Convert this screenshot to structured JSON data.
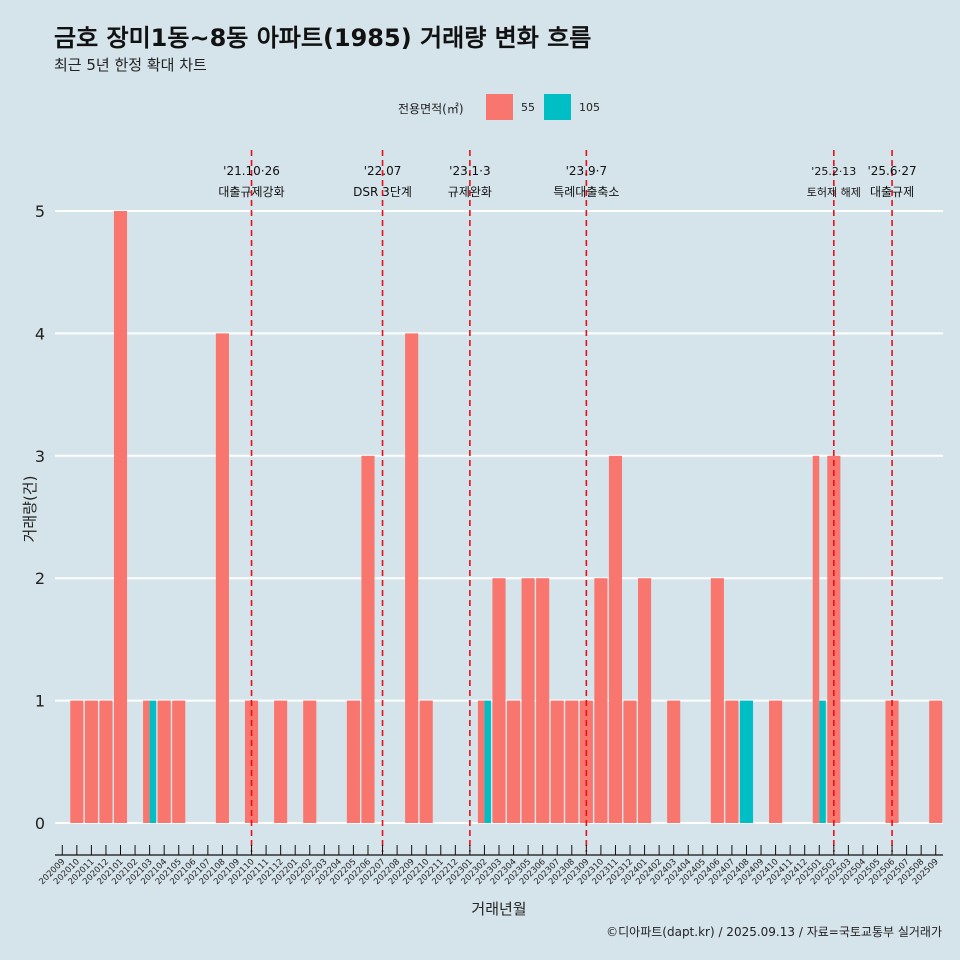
{
  "title": "금호 장미1동~8동 아파트(1985) 거래량 변화 흐름",
  "subtitle": "최근 5년 한정 확대 차트",
  "legend": {
    "title": "전용면적(㎡)",
    "items": [
      {
        "label": "55",
        "color": "#F8766D"
      },
      {
        "label": "105",
        "color": "#00BFC4"
      }
    ]
  },
  "caption": "©디아파트(dapt.kr) / 2025.09.13 / 자료=국토교통부 실거래가",
  "chart_data": {
    "type": "bar",
    "stacking": "dodge",
    "xlabel": "거래년월",
    "ylabel": "거래량(건)",
    "ylim": [
      0,
      5
    ],
    "yticks": [
      0,
      1,
      2,
      3,
      4,
      5
    ],
    "categories": [
      "202009",
      "202010",
      "202011",
      "202012",
      "202101",
      "202102",
      "202103",
      "202104",
      "202105",
      "202106",
      "202107",
      "202108",
      "202109",
      "202110",
      "202111",
      "202112",
      "202201",
      "202202",
      "202203",
      "202204",
      "202205",
      "202206",
      "202207",
      "202208",
      "202209",
      "202210",
      "202211",
      "202212",
      "202301",
      "202302",
      "202303",
      "202304",
      "202305",
      "202306",
      "202307",
      "202308",
      "202309",
      "202310",
      "202311",
      "202312",
      "202401",
      "202402",
      "202403",
      "202404",
      "202405",
      "202406",
      "202407",
      "202408",
      "202409",
      "202410",
      "202411",
      "202412",
      "202501",
      "202502",
      "202503",
      "202504",
      "202505",
      "202506",
      "202507",
      "202508",
      "202509"
    ],
    "series": [
      {
        "name": "55",
        "color": "#F8766D",
        "values": [
          0,
          1,
          1,
          1,
          5,
          0,
          1,
          1,
          1,
          0,
          0,
          4,
          0,
          1,
          0,
          1,
          0,
          1,
          0,
          0,
          1,
          3,
          0,
          0,
          4,
          1,
          0,
          0,
          0,
          1,
          2,
          1,
          2,
          2,
          1,
          1,
          1,
          2,
          3,
          1,
          2,
          0,
          1,
          0,
          0,
          2,
          1,
          0,
          0,
          1,
          0,
          0,
          3,
          3,
          0,
          0,
          0,
          1,
          0,
          0,
          1
        ]
      },
      {
        "name": "105",
        "color": "#00BFC4",
        "values": [
          0,
          0,
          0,
          0,
          0,
          0,
          1,
          0,
          0,
          0,
          0,
          0,
          0,
          0,
          0,
          0,
          0,
          0,
          0,
          0,
          0,
          0,
          0,
          0,
          0,
          0,
          0,
          0,
          0,
          1,
          0,
          0,
          0,
          0,
          0,
          0,
          0,
          0,
          0,
          0,
          0,
          0,
          0,
          0,
          0,
          0,
          0,
          1,
          0,
          0,
          0,
          0,
          1,
          0,
          0,
          0,
          0,
          0,
          0,
          0,
          0
        ]
      }
    ],
    "grid": true,
    "legend_position": "top",
    "annotations": [
      {
        "x": "202110",
        "date": "'21.10·26",
        "label": "대출규제강화"
      },
      {
        "x": "202207",
        "date": "'22.07",
        "label": "DSR 3단계"
      },
      {
        "x": "202301",
        "date": "'23.1·3",
        "label": "규제완화"
      },
      {
        "x": "202309",
        "date": "'23.9·7",
        "label": "특례대출축소"
      },
      {
        "x": "202502",
        "date": "'25.2·13",
        "label": "토허제 해제"
      },
      {
        "x": "202506",
        "date": "'25.6·27",
        "label": "대출규제"
      }
    ]
  }
}
